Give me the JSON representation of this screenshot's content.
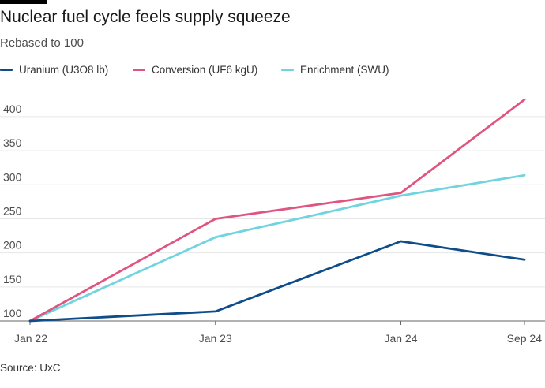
{
  "header": {
    "title": "Nuclear fuel cycle feels supply squeeze",
    "subtitle": "Rebased to 100"
  },
  "footer": {
    "source": "Source: UxC"
  },
  "chart_data": {
    "type": "line",
    "title": "Nuclear fuel cycle feels supply squeeze",
    "subtitle": "Rebased to 100",
    "xlabel": "",
    "ylabel": "",
    "x": [
      "Jan 22",
      "Jan 23",
      "Jan 24",
      "Sep 24"
    ],
    "x_positions": [
      0,
      12,
      24,
      32
    ],
    "x_tick_labels": [
      "Jan 22",
      "Jan 23",
      "Jan 24",
      "Sep 24"
    ],
    "ylim": [
      100,
      430
    ],
    "y_ticks": [
      100,
      150,
      200,
      250,
      300,
      350,
      400
    ],
    "grid": true,
    "legend_position": "top-left",
    "series": [
      {
        "name": "Uranium (U3O8 lb)",
        "color": "#0f4c8a",
        "values": [
          100,
          114,
          217,
          190
        ]
      },
      {
        "name": "Conversion (UF6 kgU)",
        "color": "#e0557f",
        "values": [
          100,
          250,
          288,
          425
        ]
      },
      {
        "name": "Enrichment (SWU)",
        "color": "#6fd3e0",
        "values": [
          100,
          223,
          284,
          314
        ]
      }
    ]
  }
}
